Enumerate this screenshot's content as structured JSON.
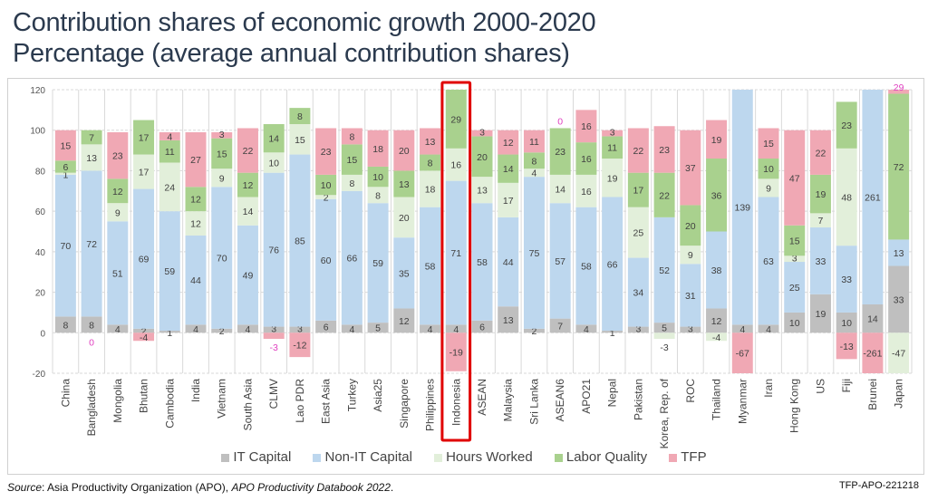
{
  "title_line1": "Contribution shares of economic growth 2000-2020",
  "title_line2": "Percentage (average annual contribution shares)",
  "source_label": "Source",
  "source_text": ": Asia Productivity Organization (APO), ",
  "source_italic": "APO Productivity Databook 2022",
  "source_end": ".",
  "code": "TFP-APO-221218",
  "colors": {
    "it_capital": "#bfbfbf",
    "non_it_capital": "#bdd7ee",
    "hours_worked": "#e2efda",
    "labor_quality": "#a9d18e",
    "tfp": "#f0a8b4",
    "highlight": "#e00000",
    "offchart_label": "#e040c0"
  },
  "chart_data": {
    "type": "bar",
    "stacked": true,
    "title": "Contribution shares of economic growth 2000-2020",
    "subtitle": "Percentage (average annual contribution shares)",
    "xlabel": "",
    "ylabel": "",
    "ylim": [
      -20,
      120
    ],
    "yticks": [
      -20,
      0,
      20,
      40,
      60,
      80,
      100,
      120
    ],
    "grid": true,
    "legend": "bottom",
    "highlighted_category": "Indonesia",
    "categories": [
      "China",
      "Bangladesh",
      "Mongolia",
      "Bhutan",
      "Cambodia",
      "India",
      "Vietnam",
      "South Asia",
      "CLMV",
      "Lao PDR",
      "East Asia",
      "Turkey",
      "Asia25",
      "Singapore",
      "Philippines",
      "Indonesia",
      "ASEAN",
      "Malaysia",
      "Sri Lanka",
      "ASEAN6",
      "APO21",
      "Nepal",
      "Pakistan",
      "Korea, Rep. of",
      "ROC",
      "Thailand",
      "Myanmar",
      "Iran",
      "Hong Kong",
      "US",
      "Fiji",
      "Brunei",
      "Japan"
    ],
    "series": [
      {
        "name": "IT Capital",
        "values": [
          8,
          8,
          4,
          2,
          1,
          4,
          2,
          4,
          3,
          3,
          6,
          4,
          5,
          12,
          4,
          4,
          6,
          13,
          2,
          7,
          4,
          1,
          3,
          5,
          3,
          12,
          4,
          4,
          10,
          19,
          10,
          14,
          33
        ]
      },
      {
        "name": "Non-IT Capital",
        "values": [
          70,
          72,
          51,
          69,
          59,
          44,
          70,
          49,
          76,
          85,
          60,
          66,
          59,
          35,
          58,
          71,
          58,
          44,
          75,
          57,
          58,
          66,
          34,
          52,
          31,
          38,
          139,
          63,
          25,
          33,
          33,
          261,
          13
        ]
      },
      {
        "name": "Hours Worked",
        "values": [
          1,
          13,
          9,
          17,
          24,
          12,
          9,
          14,
          10,
          15,
          2,
          8,
          8,
          20,
          18,
          16,
          13,
          17,
          4,
          14,
          16,
          19,
          25,
          -3,
          9,
          -4,
          0,
          9,
          3,
          7,
          48,
          0,
          -47
        ]
      },
      {
        "name": "Labor Quality",
        "values": [
          6,
          7,
          12,
          17,
          11,
          12,
          15,
          12,
          14,
          8,
          10,
          15,
          10,
          13,
          8,
          29,
          20,
          14,
          8,
          23,
          16,
          11,
          17,
          22,
          20,
          36,
          0,
          10,
          15,
          19,
          23,
          0,
          72
        ]
      },
      {
        "name": "TFP",
        "values": [
          15,
          0,
          23,
          -4,
          4,
          27,
          3,
          22,
          -3,
          -12,
          23,
          8,
          18,
          20,
          13,
          -19,
          3,
          12,
          11,
          0,
          16,
          3,
          22,
          23,
          37,
          19,
          -67,
          15,
          47,
          22,
          -13,
          -261,
          29
        ]
      }
    ],
    "label_overrides": {
      "Bangladesh.TFP": "0",
      "ASEAN6.TFP": "0",
      "Japan.TFP": "29"
    }
  }
}
